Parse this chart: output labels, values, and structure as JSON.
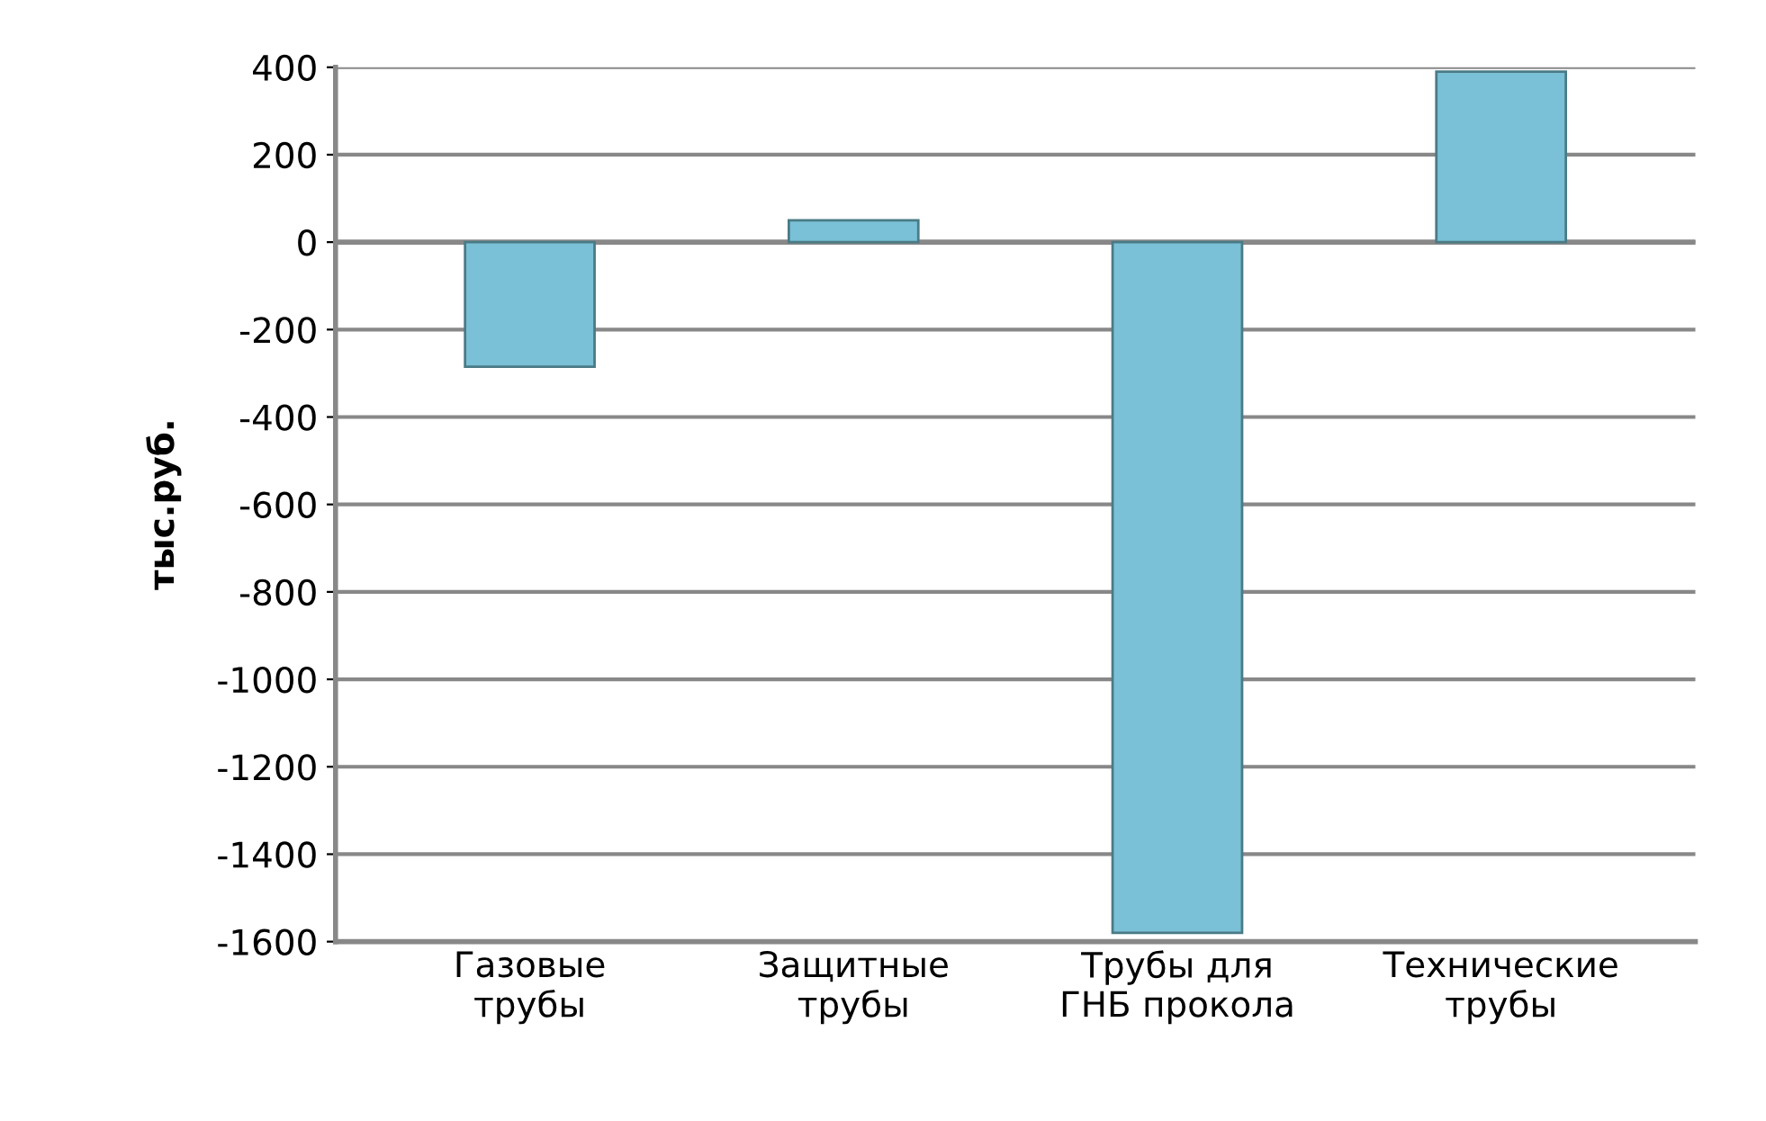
{
  "chart_data": {
    "type": "bar",
    "ylabel": "тыс.руб.",
    "categories": [
      "Газовые\nтрубы",
      "Защитные\nтрубы",
      "Трубы для\nГНБ прокола",
      "Технические\nтрубы"
    ],
    "values": [
      -285,
      50,
      -1580,
      390
    ],
    "color": "#7ac0d6",
    "ylim": [
      -1600,
      400
    ],
    "yticks": [
      -1600,
      -1400,
      -1200,
      -1000,
      -800,
      -600,
      -400,
      -200,
      0,
      200,
      400
    ],
    "grid": "y"
  }
}
